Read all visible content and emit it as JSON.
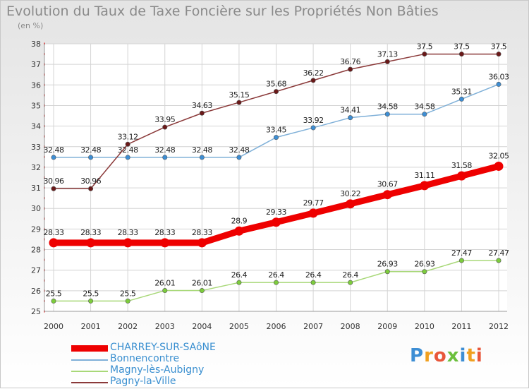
{
  "title": "Evolution du Taux de Taxe Foncière sur les Propriétés Non Bâties",
  "unit_label": "(en %)",
  "logo_text": "Proxiti",
  "chart_data": {
    "type": "line",
    "title": "Evolution du Taux de Taxe Foncière sur les Propriétés Non Bâties",
    "ylabel": "(en %)",
    "xlabel": "",
    "x": [
      "2000",
      "2001",
      "2002",
      "2003",
      "2004",
      "2005",
      "2006",
      "2007",
      "2008",
      "2009",
      "2010",
      "2011",
      "2012"
    ],
    "ylim": [
      25,
      38
    ],
    "yticks": [
      25,
      26,
      27,
      28,
      29,
      30,
      31,
      32,
      33,
      34,
      35,
      36,
      37,
      38
    ],
    "grid": true,
    "legend_position": "bottom-left",
    "series": [
      {
        "name": "CHARREY-SUR-SAôNE",
        "color": "#ee0000",
        "marker_color": "#ee0000",
        "width": "thick",
        "values": [
          28.33,
          28.33,
          28.33,
          28.33,
          28.33,
          28.9,
          29.33,
          29.77,
          30.22,
          30.67,
          31.11,
          31.58,
          32.05
        ],
        "labels": [
          "28.33",
          "28.33",
          "28.33",
          "28.33",
          "28.33",
          "28.9",
          "29.33",
          "29.77",
          "30.22",
          "30.67",
          "31.11",
          "31.58",
          "32.05"
        ]
      },
      {
        "name": "Bonnencontre",
        "color": "#7fb0d8",
        "marker_color": "#3d8ed4",
        "width": "thin",
        "values": [
          32.48,
          32.48,
          32.48,
          32.48,
          32.48,
          32.48,
          33.45,
          33.92,
          34.41,
          34.58,
          34.58,
          35.31,
          36.03
        ],
        "labels": [
          "32.48",
          "32.48",
          "32.48",
          "32.48",
          "32.48",
          "32.48",
          "33.45",
          "33.92",
          "34.41",
          "34.58",
          "34.58",
          "35.31",
          "36.03"
        ]
      },
      {
        "name": "Magny-lès-Aubigny",
        "color": "#a8d878",
        "marker_color": "#7ccc3c",
        "width": "thin",
        "values": [
          25.5,
          25.5,
          25.5,
          26.01,
          26.01,
          26.4,
          26.4,
          26.4,
          26.4,
          26.93,
          26.93,
          27.47,
          27.47
        ],
        "labels": [
          "25.5",
          "25.5",
          "25.5",
          "26.01",
          "26.01",
          "26.4",
          "26.4",
          "26.4",
          "26.4",
          "26.93",
          "26.93",
          "27.47",
          "27.47"
        ]
      },
      {
        "name": "Pagny-la-Ville",
        "color": "#8b3a3a",
        "marker_color": "#6a1818",
        "width": "thin",
        "values": [
          30.96,
          30.96,
          33.12,
          33.95,
          34.63,
          35.15,
          35.68,
          36.22,
          36.76,
          37.13,
          37.5,
          37.5,
          37.5
        ],
        "labels": [
          "30.96",
          "30.96",
          "33.12",
          "33.95",
          "34.63",
          "35.15",
          "35.68",
          "36.22",
          "36.76",
          "37.13",
          "37.5",
          "37.5",
          "37.5"
        ]
      }
    ]
  }
}
